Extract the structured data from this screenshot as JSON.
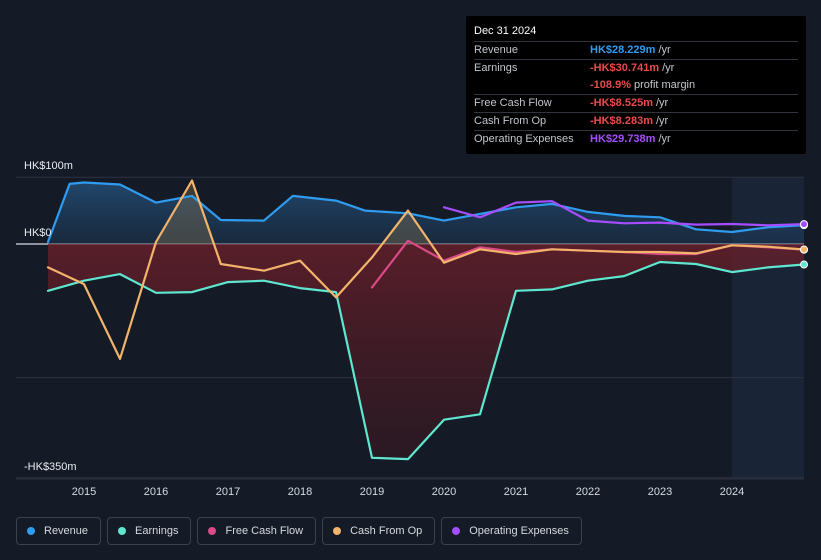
{
  "tooltip": {
    "date": "Dec 31 2024",
    "rows": [
      {
        "label": "Revenue",
        "value": "HK$28.229m",
        "unit": "/yr",
        "color": "#2f9cf0"
      },
      {
        "label": "Earnings",
        "value": "-HK$30.741m",
        "unit": "/yr",
        "color": "#e94b4b"
      },
      {
        "label": "",
        "value": "-108.9%",
        "unit": "profit margin",
        "color": "#e94b4b"
      },
      {
        "label": "Free Cash Flow",
        "value": "-HK$8.525m",
        "unit": "/yr",
        "color": "#e94b4b"
      },
      {
        "label": "Cash From Op",
        "value": "-HK$8.283m",
        "unit": "/yr",
        "color": "#e94b4b"
      },
      {
        "label": "Operating Expenses",
        "value": "HK$29.738m",
        "unit": "/yr",
        "color": "#a64dff"
      }
    ]
  },
  "legend": [
    {
      "label": "Revenue",
      "color": "#2f9cf0"
    },
    {
      "label": "Earnings",
      "color": "#5ee6cf"
    },
    {
      "label": "Free Cash Flow",
      "color": "#d94a86"
    },
    {
      "label": "Cash From Op",
      "color": "#f2b36a"
    },
    {
      "label": "Operating Expenses",
      "color": "#a64dff"
    }
  ],
  "chart_data": {
    "type": "line",
    "title": "",
    "y_unit": "HK$ m",
    "ylim": [
      -350,
      100
    ],
    "y_tick_labels": [
      "HK$100m",
      "HK$0",
      "-HK$350m"
    ],
    "x_tick_labels": [
      "2015",
      "2016",
      "2017",
      "2018",
      "2019",
      "2020",
      "2021",
      "2022",
      "2023",
      "2024"
    ],
    "xlim": [
      2014.5,
      2025.0
    ],
    "forecast_start": 2024.0,
    "series": [
      {
        "name": "Revenue",
        "color": "#2f9cf0",
        "points": [
          [
            2014.5,
            3
          ],
          [
            2014.8,
            90
          ],
          [
            2015.0,
            92
          ],
          [
            2015.5,
            89
          ],
          [
            2016.0,
            62
          ],
          [
            2016.5,
            72
          ],
          [
            2016.9,
            36
          ],
          [
            2017.5,
            35
          ],
          [
            2017.9,
            72
          ],
          [
            2018.5,
            65
          ],
          [
            2018.9,
            50
          ],
          [
            2019.5,
            46
          ],
          [
            2020.0,
            35
          ],
          [
            2020.5,
            45
          ],
          [
            2021.0,
            55
          ],
          [
            2021.5,
            60
          ],
          [
            2022.0,
            48
          ],
          [
            2022.5,
            42
          ],
          [
            2023.0,
            40
          ],
          [
            2023.5,
            22
          ],
          [
            2024.0,
            18
          ],
          [
            2024.5,
            25
          ],
          [
            2025.0,
            28.229
          ]
        ]
      },
      {
        "name": "Earnings",
        "color": "#5ee6cf",
        "points": [
          [
            2014.5,
            -70
          ],
          [
            2015.0,
            -55
          ],
          [
            2015.5,
            -45
          ],
          [
            2016.0,
            -73
          ],
          [
            2016.5,
            -72
          ],
          [
            2017.0,
            -57
          ],
          [
            2017.5,
            -55
          ],
          [
            2018.0,
            -66
          ],
          [
            2018.5,
            -72
          ],
          [
            2019.0,
            -320
          ],
          [
            2019.5,
            -322
          ],
          [
            2020.0,
            -263
          ],
          [
            2020.5,
            -255
          ],
          [
            2021.0,
            -70
          ],
          [
            2021.5,
            -68
          ],
          [
            2022.0,
            -55
          ],
          [
            2022.5,
            -48
          ],
          [
            2023.0,
            -27
          ],
          [
            2023.5,
            -30
          ],
          [
            2024.0,
            -42
          ],
          [
            2024.5,
            -35
          ],
          [
            2025.0,
            -30.741
          ]
        ]
      },
      {
        "name": "Free Cash Flow",
        "color": "#d94a86",
        "points": [
          [
            2019.0,
            -65
          ],
          [
            2019.5,
            5
          ],
          [
            2020.0,
            -25
          ],
          [
            2020.5,
            -5
          ],
          [
            2021.0,
            -12
          ],
          [
            2021.5,
            -8
          ],
          [
            2022.0,
            -10
          ],
          [
            2022.5,
            -12
          ],
          [
            2023.0,
            -15
          ],
          [
            2023.5,
            -15
          ],
          [
            2024.0,
            -2
          ],
          [
            2024.5,
            -5
          ],
          [
            2025.0,
            -8.525
          ]
        ]
      },
      {
        "name": "Cash From Op",
        "color": "#f2b36a",
        "points": [
          [
            2014.5,
            -35
          ],
          [
            2015.0,
            -60
          ],
          [
            2015.5,
            -172
          ],
          [
            2016.0,
            3
          ],
          [
            2016.5,
            95
          ],
          [
            2016.9,
            -30
          ],
          [
            2017.5,
            -40
          ],
          [
            2018.0,
            -25
          ],
          [
            2018.5,
            -80
          ],
          [
            2019.0,
            -20
          ],
          [
            2019.5,
            50
          ],
          [
            2020.0,
            -28
          ],
          [
            2020.5,
            -8
          ],
          [
            2021.0,
            -15
          ],
          [
            2021.5,
            -8
          ],
          [
            2022.0,
            -10
          ],
          [
            2022.5,
            -12
          ],
          [
            2023.0,
            -12
          ],
          [
            2023.5,
            -14
          ],
          [
            2024.0,
            -2
          ],
          [
            2024.5,
            -4
          ],
          [
            2025.0,
            -8.283
          ]
        ]
      },
      {
        "name": "Operating Expenses",
        "color": "#a64dff",
        "points": [
          [
            2020.0,
            55
          ],
          [
            2020.5,
            40
          ],
          [
            2021.0,
            62
          ],
          [
            2021.5,
            64
          ],
          [
            2022.0,
            35
          ],
          [
            2022.5,
            31
          ],
          [
            2023.0,
            32
          ],
          [
            2023.5,
            29
          ],
          [
            2024.0,
            30
          ],
          [
            2024.5,
            28
          ],
          [
            2025.0,
            29.738
          ]
        ]
      }
    ]
  }
}
